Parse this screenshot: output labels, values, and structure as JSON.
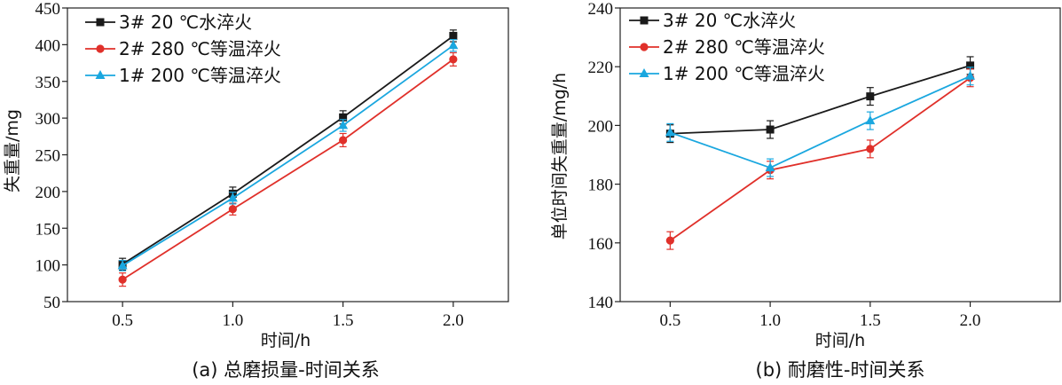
{
  "chart_data": [
    {
      "type": "line",
      "caption": "(a) 总磨损量-时间关系",
      "xlabel": "时间/h",
      "ylabel": "失重量/mg",
      "x": [
        0.5,
        1.0,
        1.5,
        2.0
      ],
      "xticks": [
        "0.5",
        "1.0",
        "1.5",
        "2.0"
      ],
      "ylim": [
        50,
        450
      ],
      "yticks": [
        50,
        100,
        150,
        200,
        250,
        300,
        350,
        400,
        450
      ],
      "legend_position": "top-left",
      "series": [
        {
          "name": "3# 20 ℃水淬火",
          "color": "#1a1a1a",
          "marker": "square",
          "values": [
            101,
            197,
            301,
            412
          ],
          "errors": [
            8,
            9,
            9,
            8
          ]
        },
        {
          "name": "2# 280 ℃等温淬火",
          "color": "#e0302a",
          "marker": "circle",
          "values": [
            80,
            176,
            270,
            380
          ],
          "errors": [
            9,
            8,
            9,
            9
          ]
        },
        {
          "name": "1# 200 ℃等温淬火",
          "color": "#1aa7df",
          "marker": "triangle",
          "values": [
            99,
            191,
            290,
            399
          ],
          "errors": [
            7,
            8,
            8,
            8
          ]
        }
      ]
    },
    {
      "type": "line",
      "caption": "(b) 耐磨性-时间关系",
      "xlabel": "时间/h",
      "ylabel": "单位时间失重量/mg/h",
      "x": [
        0.5,
        1.0,
        1.5,
        2.0
      ],
      "xticks": [
        "0.5",
        "1.0",
        "1.5",
        "2.0"
      ],
      "ylim": [
        140,
        240
      ],
      "yticks": [
        140,
        160,
        180,
        200,
        220,
        240
      ],
      "legend_position": "top-left",
      "series": [
        {
          "name": "3# 20 ℃水淬火",
          "color": "#1a1a1a",
          "marker": "square",
          "values": [
            197.2,
            198.6,
            209.9,
            220.4
          ],
          "errors": [
            3,
            3,
            3,
            3
          ]
        },
        {
          "name": "2# 280 ℃等温淬火",
          "color": "#e0302a",
          "marker": "circle",
          "values": [
            160.8,
            184.8,
            192,
            216.2
          ],
          "errors": [
            3,
            3,
            3,
            3
          ]
        },
        {
          "name": "1# 200 ℃等温淬火",
          "color": "#1aa7df",
          "marker": "triangle",
          "values": [
            197.6,
            185.6,
            201.6,
            216.8
          ],
          "errors": [
            3,
            3,
            3,
            3
          ]
        }
      ]
    }
  ]
}
